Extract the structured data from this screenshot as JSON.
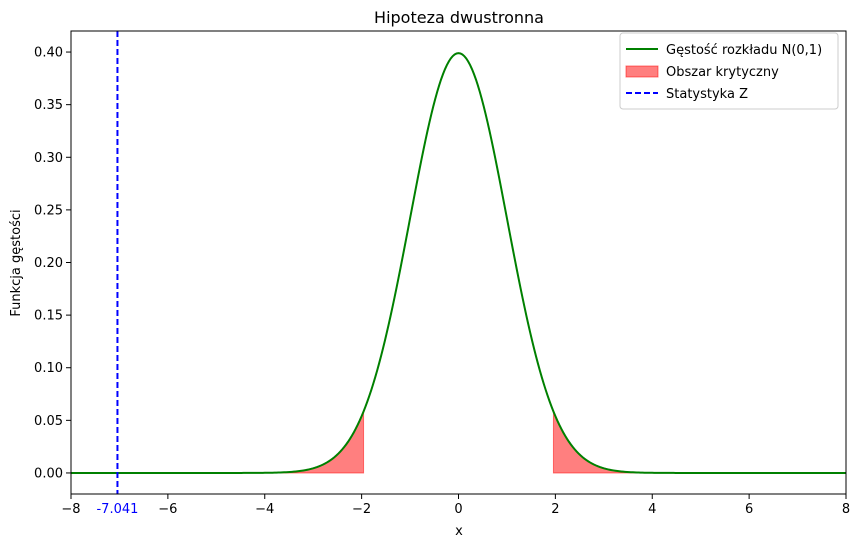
{
  "chart_data": {
    "type": "line",
    "title": "Hipoteza dwustronna",
    "xlabel": "x",
    "ylabel": "Funkcja gęstości",
    "xlim": [
      -8,
      8
    ],
    "ylim": [
      -0.02,
      0.42
    ],
    "x_ticks": [
      -8,
      -6,
      -4,
      -2,
      0,
      2,
      4,
      6,
      8
    ],
    "x_tick_labels": [
      "−8",
      "−6",
      "−4",
      "−2",
      "0",
      "2",
      "4",
      "6",
      "8"
    ],
    "y_ticks": [
      0.0,
      0.05,
      0.1,
      0.15,
      0.2,
      0.25,
      0.3,
      0.35,
      0.4
    ],
    "y_tick_labels": [
      "0.00",
      "0.05",
      "0.10",
      "0.15",
      "0.20",
      "0.25",
      "0.30",
      "0.35",
      "0.40"
    ],
    "grid": false,
    "legend_position": "top-right",
    "series": [
      {
        "name": "Gęstość rozkładu N(0,1)",
        "kind": "line",
        "distribution": "normal",
        "mean": 0,
        "sd": 1,
        "x_range": [
          -8,
          8
        ],
        "color": "#008000"
      },
      {
        "name": "Obszar krytyczny",
        "kind": "area",
        "regions": [
          [
            -8,
            -1.96
          ],
          [
            1.96,
            8
          ]
        ],
        "color": "#ff0000",
        "opacity": 0.5
      },
      {
        "name": "Statystyka Z",
        "kind": "vline",
        "x": -7.041,
        "color": "#0000ff",
        "dashed": true
      }
    ],
    "annotations": [
      {
        "text": "-7.041",
        "x": -7.041,
        "color": "#0000ff"
      }
    ]
  }
}
